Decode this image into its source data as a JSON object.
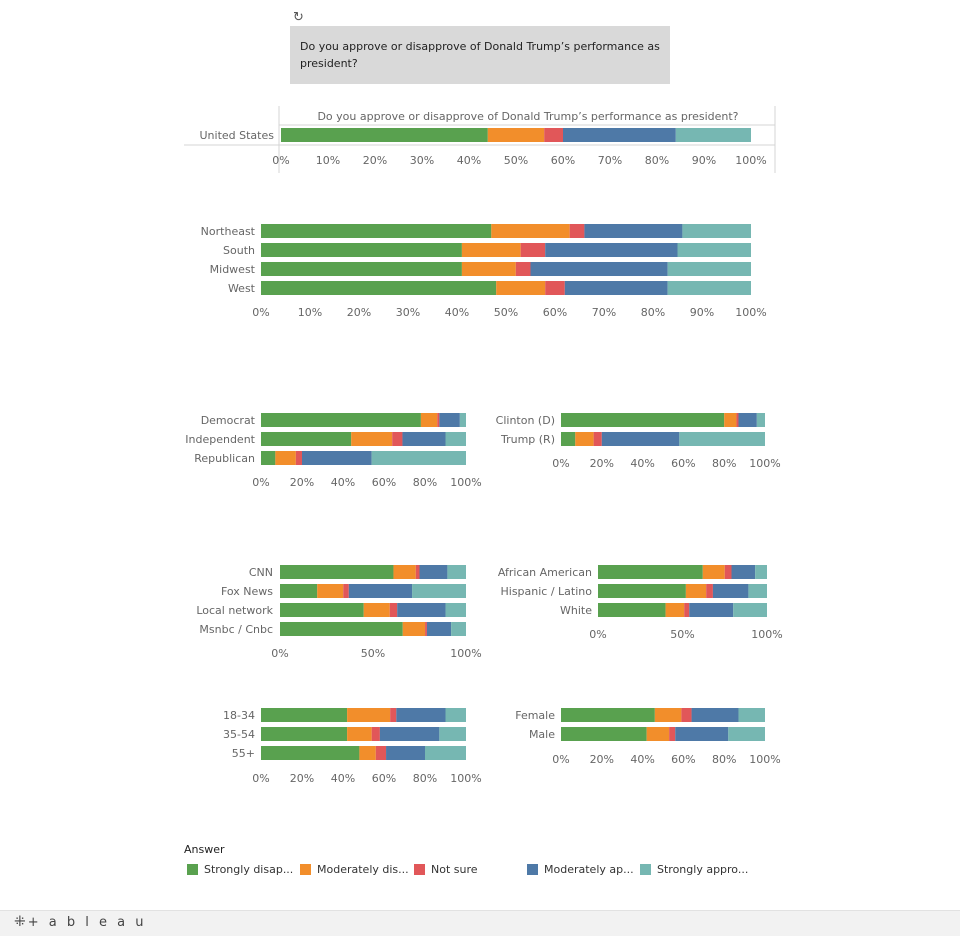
{
  "header": {
    "title": "Do you approve or disapprove of Donald Trump’s performance as president?"
  },
  "footer": {
    "brand": "+ a b l e a u"
  },
  "legend": {
    "title": "Answer",
    "items": [
      {
        "label": "Strongly disap...",
        "color": "#59a14f"
      },
      {
        "label": "Moderately dis...",
        "color": "#f28e2b"
      },
      {
        "label": "Not sure",
        "color": "#e15759"
      },
      {
        "label": "Moderately ap...",
        "color": "#4e79a7"
      },
      {
        "label": "Strongly appro...",
        "color": "#76b7b2"
      }
    ]
  },
  "chart_data": [
    {
      "type": "bar",
      "stacked": true,
      "orientation": "horizontal",
      "title": "Do you approve or disapprove of Donald Trump’s performance as president?",
      "categories": [
        "United States"
      ],
      "ticks": [
        "0%",
        "10%",
        "20%",
        "30%",
        "40%",
        "50%",
        "60%",
        "70%",
        "80%",
        "90%",
        "100%"
      ],
      "xlim": [
        0,
        100
      ],
      "series": [
        {
          "name": "Strongly disap...",
          "values": [
            44
          ]
        },
        {
          "name": "Moderately dis...",
          "values": [
            12
          ]
        },
        {
          "name": "Not sure",
          "values": [
            4
          ]
        },
        {
          "name": "Moderately ap...",
          "values": [
            24
          ]
        },
        {
          "name": "Strongly appro...",
          "values": [
            16
          ]
        }
      ]
    },
    {
      "type": "bar",
      "stacked": true,
      "orientation": "horizontal",
      "categories": [
        "Northeast",
        "South",
        "Midwest",
        "West"
      ],
      "ticks": [
        "0%",
        "10%",
        "20%",
        "30%",
        "40%",
        "50%",
        "60%",
        "70%",
        "80%",
        "90%",
        "100%"
      ],
      "xlim": [
        0,
        100
      ],
      "series": [
        {
          "name": "Strongly disap...",
          "values": [
            47,
            41,
            41,
            48
          ]
        },
        {
          "name": "Moderately dis...",
          "values": [
            16,
            12,
            11,
            10
          ]
        },
        {
          "name": "Not sure",
          "values": [
            3,
            5,
            3,
            4
          ]
        },
        {
          "name": "Moderately ap...",
          "values": [
            20,
            27,
            28,
            21
          ]
        },
        {
          "name": "Strongly appro...",
          "values": [
            14,
            15,
            17,
            17
          ]
        }
      ]
    },
    {
      "type": "bar",
      "stacked": true,
      "orientation": "horizontal",
      "categories": [
        "Democrat",
        "Independent",
        "Republican"
      ],
      "ticks": [
        "0%",
        "20%",
        "40%",
        "60%",
        "80%",
        "100%"
      ],
      "xlim": [
        0,
        100
      ],
      "series": [
        {
          "name": "Strongly disap...",
          "values": [
            78,
            44,
            7
          ]
        },
        {
          "name": "Moderately dis...",
          "values": [
            8,
            20,
            10
          ]
        },
        {
          "name": "Not sure",
          "values": [
            1,
            5,
            3
          ]
        },
        {
          "name": "Moderately ap...",
          "values": [
            10,
            21,
            34
          ]
        },
        {
          "name": "Strongly appro...",
          "values": [
            3,
            10,
            46
          ]
        }
      ]
    },
    {
      "type": "bar",
      "stacked": true,
      "orientation": "horizontal",
      "categories": [
        "Clinton (D)",
        "Trump (R)"
      ],
      "ticks": [
        "0%",
        "20%",
        "40%",
        "60%",
        "80%",
        "100%"
      ],
      "xlim": [
        0,
        100
      ],
      "series": [
        {
          "name": "Strongly disap...",
          "values": [
            80,
            7
          ]
        },
        {
          "name": "Moderately dis...",
          "values": [
            6,
            9
          ]
        },
        {
          "name": "Not sure",
          "values": [
            1,
            4
          ]
        },
        {
          "name": "Moderately ap...",
          "values": [
            9,
            38
          ]
        },
        {
          "name": "Strongly appro...",
          "values": [
            4,
            42
          ]
        }
      ]
    },
    {
      "type": "bar",
      "stacked": true,
      "orientation": "horizontal",
      "categories": [
        "CNN",
        "Fox News",
        "Local network",
        "Msnbc / Cnbc"
      ],
      "ticks": [
        "0%",
        "50%",
        "100%"
      ],
      "xlim": [
        0,
        100
      ],
      "series": [
        {
          "name": "Strongly disap...",
          "values": [
            61,
            20,
            45,
            66
          ]
        },
        {
          "name": "Moderately dis...",
          "values": [
            12,
            14,
            14,
            12
          ]
        },
        {
          "name": "Not sure",
          "values": [
            2,
            3,
            4,
            1
          ]
        },
        {
          "name": "Moderately ap...",
          "values": [
            15,
            34,
            26,
            13
          ]
        },
        {
          "name": "Strongly appro...",
          "values": [
            10,
            29,
            11,
            8
          ]
        }
      ]
    },
    {
      "type": "bar",
      "stacked": true,
      "orientation": "horizontal",
      "categories": [
        "African American",
        "Hispanic / Latino",
        "White"
      ],
      "ticks": [
        "0%",
        "50%",
        "100%"
      ],
      "xlim": [
        0,
        100
      ],
      "series": [
        {
          "name": "Strongly disap...",
          "values": [
            62,
            52,
            40
          ]
        },
        {
          "name": "Moderately dis...",
          "values": [
            13,
            12,
            11
          ]
        },
        {
          "name": "Not sure",
          "values": [
            4,
            4,
            3
          ]
        },
        {
          "name": "Moderately ap...",
          "values": [
            14,
            21,
            26
          ]
        },
        {
          "name": "Strongly appro...",
          "values": [
            7,
            11,
            20
          ]
        }
      ]
    },
    {
      "type": "bar",
      "stacked": true,
      "orientation": "horizontal",
      "categories": [
        "18-34",
        "35-54",
        "55+"
      ],
      "ticks": [
        "0%",
        "20%",
        "40%",
        "60%",
        "80%",
        "100%"
      ],
      "xlim": [
        0,
        100
      ],
      "series": [
        {
          "name": "Strongly disap...",
          "values": [
            42,
            42,
            48
          ]
        },
        {
          "name": "Moderately dis...",
          "values": [
            21,
            12,
            8
          ]
        },
        {
          "name": "Not sure",
          "values": [
            3,
            4,
            5
          ]
        },
        {
          "name": "Moderately ap...",
          "values": [
            24,
            29,
            19
          ]
        },
        {
          "name": "Strongly appro...",
          "values": [
            10,
            13,
            20
          ]
        }
      ]
    },
    {
      "type": "bar",
      "stacked": true,
      "orientation": "horizontal",
      "categories": [
        "Female",
        "Male"
      ],
      "ticks": [
        "0%",
        "20%",
        "40%",
        "60%",
        "80%",
        "100%"
      ],
      "xlim": [
        0,
        100
      ],
      "series": [
        {
          "name": "Strongly disap...",
          "values": [
            46,
            42
          ]
        },
        {
          "name": "Moderately dis...",
          "values": [
            13,
            11
          ]
        },
        {
          "name": "Not sure",
          "values": [
            5,
            3
          ]
        },
        {
          "name": "Moderately ap...",
          "values": [
            23,
            26
          ]
        },
        {
          "name": "Strongly appro...",
          "values": [
            13,
            18
          ]
        }
      ]
    }
  ]
}
